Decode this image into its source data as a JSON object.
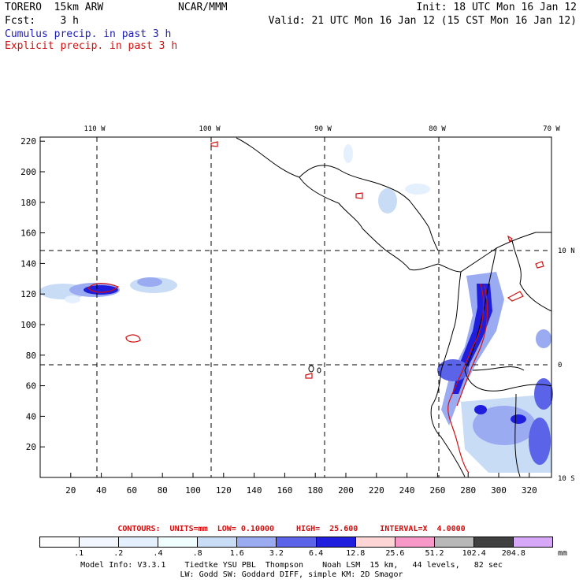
{
  "header": {
    "model": "TORERO  15km ARW",
    "org": "NCAR/MMM",
    "init": "Init: 18 UTC Mon 16 Jan 12",
    "fcst": "Fcst:    3 h",
    "valid": "Valid: 21 UTC Mon 16 Jan 12 (15 CST Mon 16 Jan 12)",
    "cumulus_label": "Cumulus precip. in past 3 h",
    "explicit_label": "Explicit precip. in past 3 h"
  },
  "colors": {
    "cumulus_text": "#1a1ab4",
    "explicit_text": "#d01010",
    "land_border": "#000000",
    "explicit_contour": "#d01010"
  },
  "map": {
    "top_lon_labels": [
      "110 W",
      "100 W",
      "90 W",
      "80 W",
      "70 W"
    ],
    "right_lat_labels": [
      "10 N",
      "0",
      "10 S"
    ],
    "x_ticks": [
      "20",
      "40",
      "60",
      "80",
      "100",
      "120",
      "140",
      "160",
      "180",
      "200",
      "220",
      "240",
      "260",
      "280",
      "300",
      "320"
    ],
    "y_ticks": [
      "20",
      "40",
      "60",
      "80",
      "100",
      "120",
      "140",
      "160",
      "180",
      "200",
      "220"
    ]
  },
  "contours": {
    "units": "CONTOURS:  UNITS=mm  LOW= 0.10000",
    "high": "HIGH=  25.600",
    "interval": "INTERVAL=X  4.0000"
  },
  "colorbar": {
    "colors": [
      "#ffffff",
      "#f2f7ff",
      "#e5f0ff",
      "#f0ffff",
      "#c9dcf6",
      "#9aabf2",
      "#5b63e8",
      "#1e1edc",
      "#ffd6d6",
      "#f898c8",
      "#b8b8b8",
      "#404040",
      "#d8a8f8"
    ],
    "labels": [
      ".1",
      ".2",
      ".4",
      ".8",
      "1.6",
      "3.2",
      "6.4",
      "12.8",
      "25.6",
      "51.2",
      "102.4",
      "204.8"
    ],
    "unit": "mm"
  },
  "footer": {
    "line1": "Model Info: V3.3.1    Tiedtke YSU PBL  Thompson    Noah LSM  15 km,   44 levels,   82 sec",
    "line2": "LW: Godd SW: Goddard DIFF, simple KM: 2D Smagor"
  }
}
